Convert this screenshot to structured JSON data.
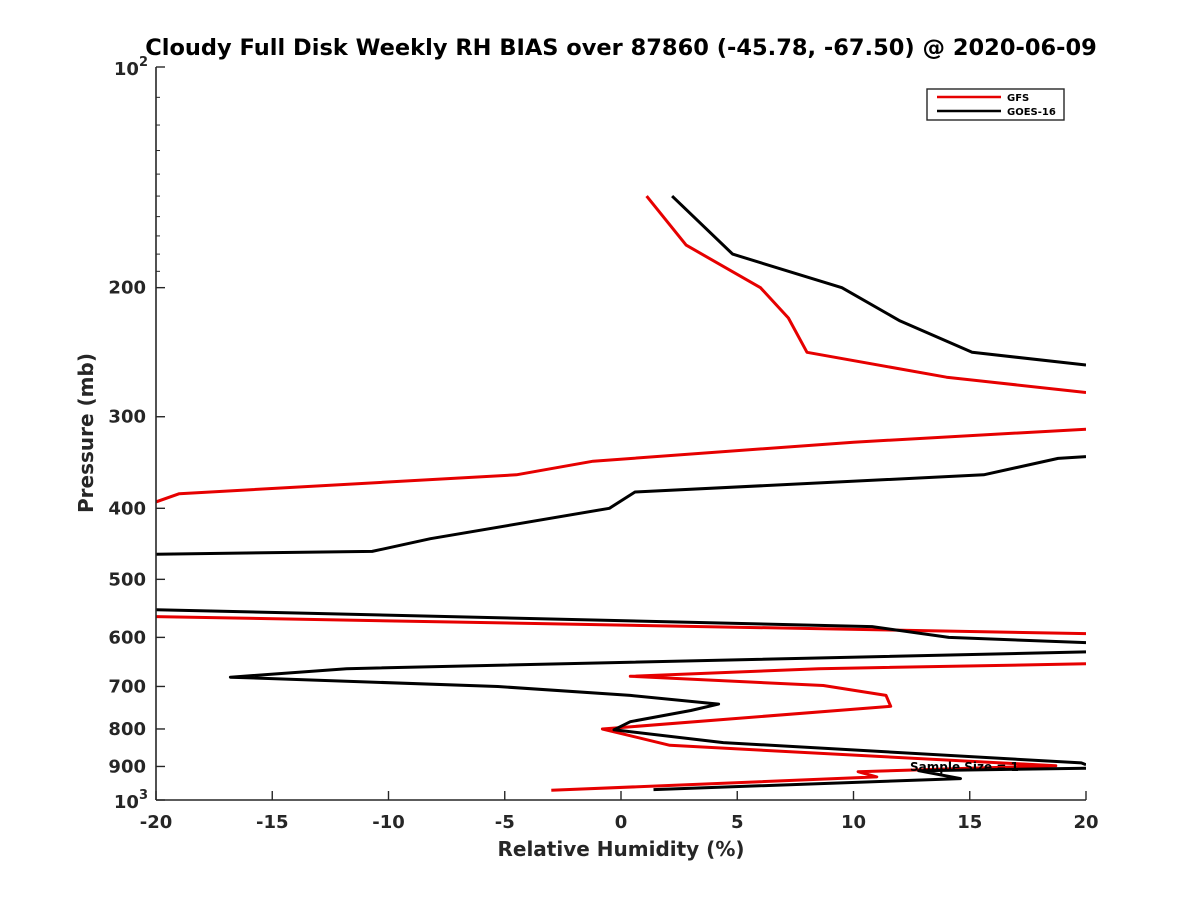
{
  "chart_data": {
    "type": "line",
    "title": "Cloudy Full Disk Weekly RH BIAS over 87860 (-45.78, -67.50) @ 2020-06-09",
    "xlabel": "Relative Humidity (%)",
    "ylabel": "Pressure (mb)",
    "xlim": [
      -20,
      20
    ],
    "ylim": [
      100,
      1000
    ],
    "y_scale": "log",
    "y_reversed": true,
    "x_ticks": [
      "-20",
      "-15",
      "-10",
      "-5",
      "0",
      "5",
      "10",
      "15",
      "20"
    ],
    "y_ticks": [
      {
        "value": 100,
        "base": "10",
        "exp": "2"
      },
      {
        "value": 200,
        "label": "200"
      },
      {
        "value": 300,
        "label": "300"
      },
      {
        "value": 400,
        "label": "400"
      },
      {
        "value": 500,
        "label": "500"
      },
      {
        "value": 600,
        "label": "600"
      },
      {
        "value": 700,
        "label": "700"
      },
      {
        "value": 800,
        "label": "800"
      },
      {
        "value": 900,
        "label": "900"
      },
      {
        "value": 1000,
        "base": "10",
        "exp": "3"
      }
    ],
    "legend_position": "top-right",
    "annotation": "Sample Size = 1",
    "series": [
      {
        "name": "GFS",
        "color": "#e60000",
        "points": [
          [
            1.1,
            150
          ],
          [
            2.8,
            175
          ],
          [
            6.0,
            200
          ],
          [
            7.2,
            220
          ],
          [
            8.0,
            245
          ],
          [
            14.0,
            265
          ],
          [
            20.0,
            278
          ],
          [
            null,
            null
          ],
          [
            20.0,
            312
          ],
          [
            10.0,
            325
          ],
          [
            -1.2,
            345
          ],
          [
            -4.5,
            360
          ],
          [
            -19.0,
            382
          ],
          [
            -20.0,
            392
          ],
          [
            null,
            null
          ],
          [
            -20.0,
            562
          ],
          [
            20.0,
            593
          ],
          [
            null,
            null
          ],
          [
            20.0,
            652
          ],
          [
            8.5,
            662
          ],
          [
            0.4,
            678
          ],
          [
            8.7,
            698
          ],
          [
            11.4,
            720
          ],
          [
            11.6,
            745
          ],
          [
            -0.8,
            800
          ],
          [
            2.1,
            842
          ],
          [
            18.7,
            898
          ],
          [
            15.0,
            905
          ],
          [
            10.2,
            915
          ],
          [
            11.0,
            930
          ],
          [
            -3.0,
            970
          ]
        ]
      },
      {
        "name": "GOES-16",
        "color": "#000000",
        "points": [
          [
            2.2,
            150
          ],
          [
            4.8,
            180
          ],
          [
            9.5,
            200
          ],
          [
            12.0,
            222
          ],
          [
            15.1,
            245
          ],
          [
            20.0,
            255
          ],
          [
            null,
            null
          ],
          [
            20.0,
            340
          ],
          [
            18.8,
            342
          ],
          [
            15.6,
            360
          ],
          [
            0.6,
            380
          ],
          [
            -0.5,
            400
          ],
          [
            -8.2,
            440
          ],
          [
            -10.7,
            458
          ],
          [
            -20.0,
            462
          ],
          [
            null,
            null
          ],
          [
            -20.0,
            550
          ],
          [
            10.8,
            580
          ],
          [
            14.1,
            600
          ],
          [
            20.0,
            610
          ],
          [
            null,
            null
          ],
          [
            20.0,
            628
          ],
          [
            -11.8,
            662
          ],
          [
            -16.8,
            680
          ],
          [
            -5.3,
            700
          ],
          [
            0.4,
            720
          ],
          [
            4.2,
            740
          ],
          [
            3.0,
            755
          ],
          [
            0.4,
            782
          ],
          [
            -0.3,
            802
          ],
          [
            4.4,
            835
          ],
          [
            19.8,
            890
          ],
          [
            20.0,
            895
          ],
          [
            null,
            null
          ],
          [
            20.0,
            905
          ],
          [
            12.8,
            912
          ],
          [
            14.6,
            935
          ],
          [
            1.4,
            968
          ]
        ]
      }
    ]
  }
}
